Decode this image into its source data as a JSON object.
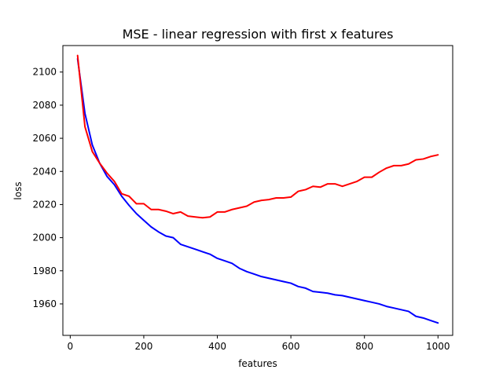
{
  "chart_data": {
    "type": "line",
    "title": "MSE - linear regression with first x features",
    "xlabel": "features",
    "ylabel": "loss",
    "xlim": [
      -20,
      1040
    ],
    "ylim": [
      1941,
      2116
    ],
    "xticks": [
      0,
      200,
      400,
      600,
      800,
      1000
    ],
    "yticks": [
      1960,
      1980,
      2000,
      2020,
      2040,
      2060,
      2080,
      2100
    ],
    "grid": false,
    "x": [
      20,
      40,
      60,
      80,
      100,
      120,
      140,
      160,
      180,
      200,
      220,
      240,
      260,
      280,
      300,
      320,
      340,
      360,
      380,
      400,
      420,
      440,
      460,
      480,
      500,
      520,
      540,
      560,
      580,
      600,
      620,
      640,
      660,
      680,
      700,
      720,
      740,
      760,
      780,
      800,
      820,
      840,
      860,
      880,
      900,
      920,
      940,
      960,
      980,
      1000
    ],
    "series": [
      {
        "color": "#0000ff",
        "values": [
          2108,
          2075,
          2056,
          2045,
          2037,
          2032,
          2025,
          2019.5,
          2014.5,
          2010.5,
          2006.5,
          2003.5,
          2001,
          2000,
          1996,
          1994.5,
          1993,
          1991.5,
          1990,
          1987.5,
          1986,
          1984.5,
          1981.5,
          1979.5,
          1978,
          1976.5,
          1975.5,
          1974.5,
          1973.5,
          1972.5,
          1970.5,
          1969.5,
          1967.5,
          1967,
          1966.5,
          1965.5,
          1965,
          1964,
          1963,
          1962,
          1961,
          1960,
          1958.5,
          1957.5,
          1956.5,
          1955.5,
          1952.5,
          1951.5,
          1950,
          1948.5
        ]
      },
      {
        "color": "#ff0000",
        "values": [
          2110,
          2067,
          2052,
          2045,
          2039,
          2034,
          2026.5,
          2025,
          2020.5,
          2020.5,
          2017,
          2017,
          2016,
          2014.5,
          2015.5,
          2013,
          2012.5,
          2012,
          2012.5,
          2015.5,
          2015.5,
          2017,
          2018,
          2019,
          2021.5,
          2022.5,
          2023,
          2024,
          2024,
          2024.5,
          2028,
          2029,
          2031,
          2030.5,
          2032.5,
          2032.5,
          2031,
          2032.5,
          2034,
          2036.5,
          2036.5,
          2039.5,
          2042,
          2043.5,
          2043.5,
          2044.5,
          2047,
          2047.5,
          2049,
          2050
        ]
      }
    ]
  }
}
